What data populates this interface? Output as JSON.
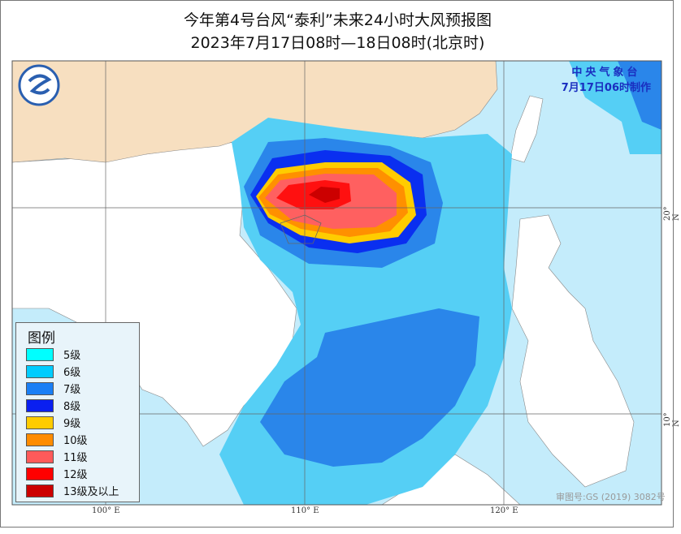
{
  "title": {
    "line1": "今年第4号台风“泰利”未来24小时大风预报图",
    "line2": "2023年7月17日08时—18日08时(北京时)"
  },
  "agency": {
    "name": "中央气象台",
    "issued": "7月17日06时制作"
  },
  "legend": {
    "title": "图例",
    "items": [
      {
        "label": "5级",
        "color": "#00ffff"
      },
      {
        "label": "6级",
        "color": "#00ccff"
      },
      {
        "label": "7级",
        "color": "#1a7ff5"
      },
      {
        "label": "8级",
        "color": "#0a1ff0"
      },
      {
        "label": "9级",
        "color": "#ffcc00"
      },
      {
        "label": "10级",
        "color": "#ff8c00"
      },
      {
        "label": "11级",
        "color": "#ff5a5a"
      },
      {
        "label": "12级",
        "color": "#ff0000"
      },
      {
        "label": "13级及以上",
        "color": "#cc0000"
      }
    ]
  },
  "axes": {
    "lon": [
      "100° E",
      "110° E",
      "120° E"
    ],
    "lat": [
      "20° N",
      "10° N"
    ]
  },
  "approval": "审图号:GS (2019) 3082号",
  "colors": {
    "sea": "#c4ecfb",
    "china_land": "#f7dfc0",
    "other_land": "#ffffff"
  }
}
